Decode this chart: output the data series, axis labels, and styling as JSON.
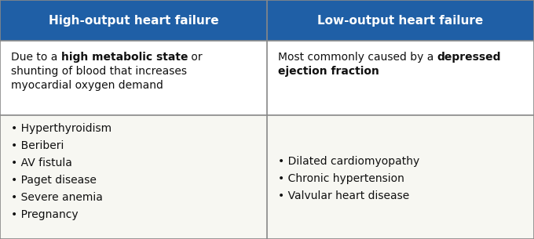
{
  "header_bg": "#1f5fa6",
  "header_text_color": "#ffffff",
  "cell_bg": "#f0f0eb",
  "border_color": "#888888",
  "text_color": "#111111",
  "col1_header": "High-output heart failure",
  "col2_header": "Low-output heart failure",
  "row2_col1_items": [
    "Hyperthyroidism",
    "Beriberi",
    "AV fistula",
    "Paget disease",
    "Severe anemia",
    "Pregnancy"
  ],
  "row2_col2_items": [
    "Dilated cardiomyopathy",
    "Chronic hypertension",
    "Valvular heart disease"
  ],
  "header_fontsize": 11.0,
  "body_fontsize": 10.0,
  "figsize": [
    6.8,
    3.05
  ],
  "dpi": 100
}
